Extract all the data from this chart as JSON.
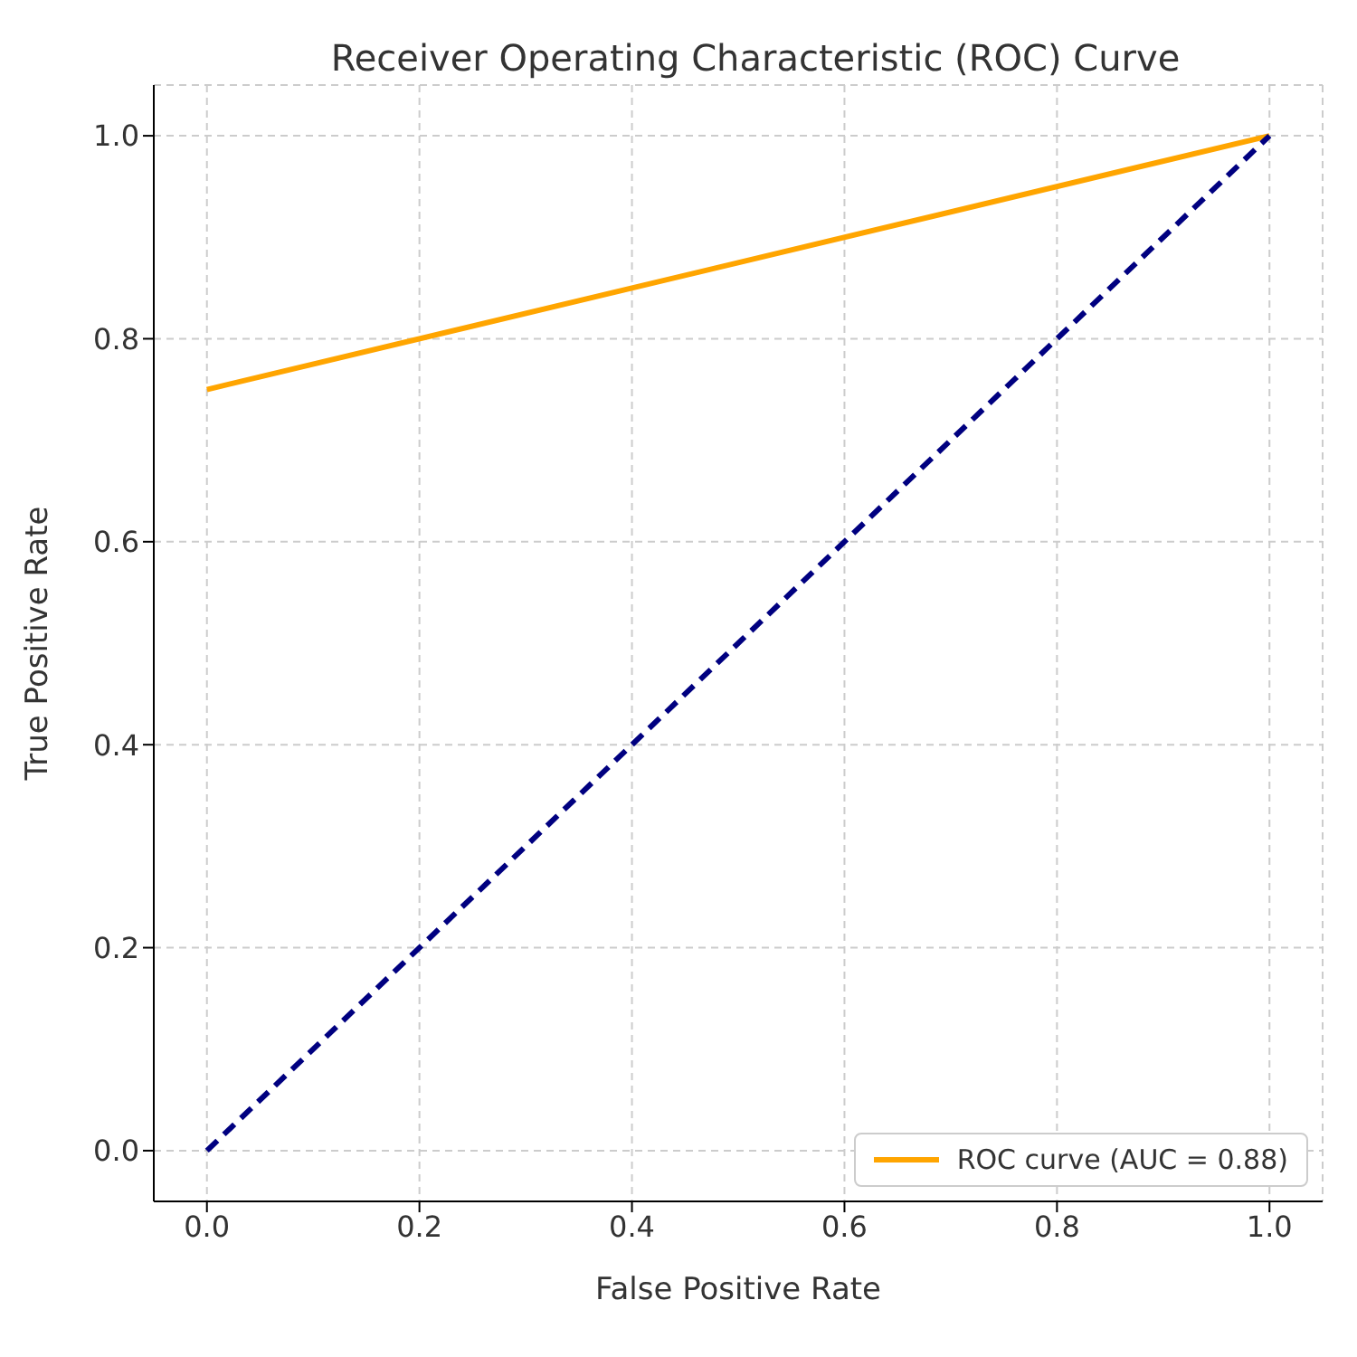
{
  "chart_data": {
    "type": "line",
    "title": "Receiver Operating Characteristic (ROC) Curve",
    "xlabel": "False Positive Rate",
    "ylabel": "True Positive Rate",
    "series": [
      {
        "name": "ROC curve (AUC = 0.88)",
        "color": "#ffa500",
        "values": [
          0.75,
          1
        ],
        "line_style": "solid"
      },
      {
        "color": "#000080",
        "values": [
          0,
          1
        ],
        "line_style": "dashed"
      }
    ],
    "x": [
      0,
      1
    ],
    "xlim": [
      -0.05,
      1.05
    ],
    "ylim": [
      -0.05,
      1.05
    ],
    "xticks": [
      {
        "value": 0,
        "label": "0.0"
      },
      {
        "value": 0.2,
        "label": "0.2"
      },
      {
        "value": 0.4,
        "label": "0.4"
      },
      {
        "value": 0.6,
        "label": "0.6"
      },
      {
        "value": 0.8,
        "label": "0.8"
      },
      {
        "value": 1,
        "label": "1.0"
      }
    ],
    "yticks": [
      {
        "value": 0,
        "label": "0.0"
      },
      {
        "value": 0.2,
        "label": "0.2"
      },
      {
        "value": 0.4,
        "label": "0.4"
      },
      {
        "value": 0.6,
        "label": "0.6"
      },
      {
        "value": 0.8,
        "label": "0.8"
      },
      {
        "value": 1,
        "label": "1.0"
      }
    ],
    "grid": true,
    "legend": "bottom right",
    "marker": "none"
  }
}
